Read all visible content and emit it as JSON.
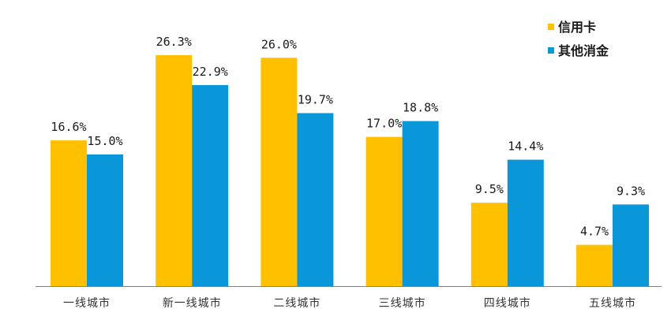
{
  "chart_data": {
    "type": "bar",
    "categories": [
      "一线城市",
      "新一线城市",
      "二线城市",
      "三线城市",
      "四线城市",
      "五线城市"
    ],
    "series": [
      {
        "name": "信用卡",
        "values": [
          16.6,
          26.3,
          26.0,
          17.0,
          9.5,
          4.7
        ],
        "labels": [
          "16.6%",
          "26.3%",
          "26.0%",
          "17.0%",
          "9.5%",
          "4.7%"
        ],
        "color": "#FFC000"
      },
      {
        "name": "其他消金",
        "values": [
          15.0,
          22.9,
          19.7,
          18.8,
          14.4,
          9.3
        ],
        "labels": [
          "15.0%",
          "22.9%",
          "19.7%",
          "18.8%",
          "14.4%",
          "9.3%"
        ],
        "color": "#0A97D9"
      }
    ],
    "title": "",
    "xlabel": "",
    "ylabel": "",
    "ylim": [
      0,
      26.3
    ],
    "grid": false,
    "legend": "top-right",
    "axis_color": "#808080"
  }
}
